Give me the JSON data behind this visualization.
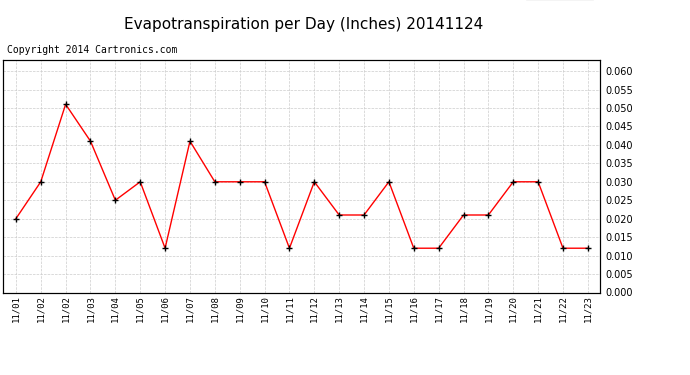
{
  "title": "Evapotranspiration per Day (Inches) 20141124",
  "copyright": "Copyright 2014 Cartronics.com",
  "legend_bg": "#ff0000",
  "legend_text_color": "#ffffff",
  "x_labels": [
    "11/01",
    "11/02",
    "11/02",
    "11/03",
    "11/04",
    "11/05",
    "11/06",
    "11/07",
    "11/08",
    "11/09",
    "11/10",
    "11/11",
    "11/12",
    "11/13",
    "11/14",
    "11/15",
    "11/16",
    "11/17",
    "11/18",
    "11/19",
    "11/20",
    "11/21",
    "11/22",
    "11/23"
  ],
  "y_values": [
    0.02,
    0.03,
    0.051,
    0.041,
    0.025,
    0.03,
    0.012,
    0.041,
    0.03,
    0.03,
    0.03,
    0.012,
    0.03,
    0.021,
    0.021,
    0.03,
    0.012,
    0.012,
    0.021,
    0.021,
    0.03,
    0.03,
    0.012,
    0.012
  ],
  "line_color": "#ff0000",
  "marker_color": "#000000",
  "ylim": [
    0.0,
    0.063
  ],
  "yticks": [
    0.0,
    0.005,
    0.01,
    0.015,
    0.02,
    0.025,
    0.03,
    0.035,
    0.04,
    0.045,
    0.05,
    0.055,
    0.06
  ],
  "grid_color": "#cccccc",
  "bg_color": "#ffffff",
  "title_fontsize": 11,
  "copyright_fontsize": 7
}
